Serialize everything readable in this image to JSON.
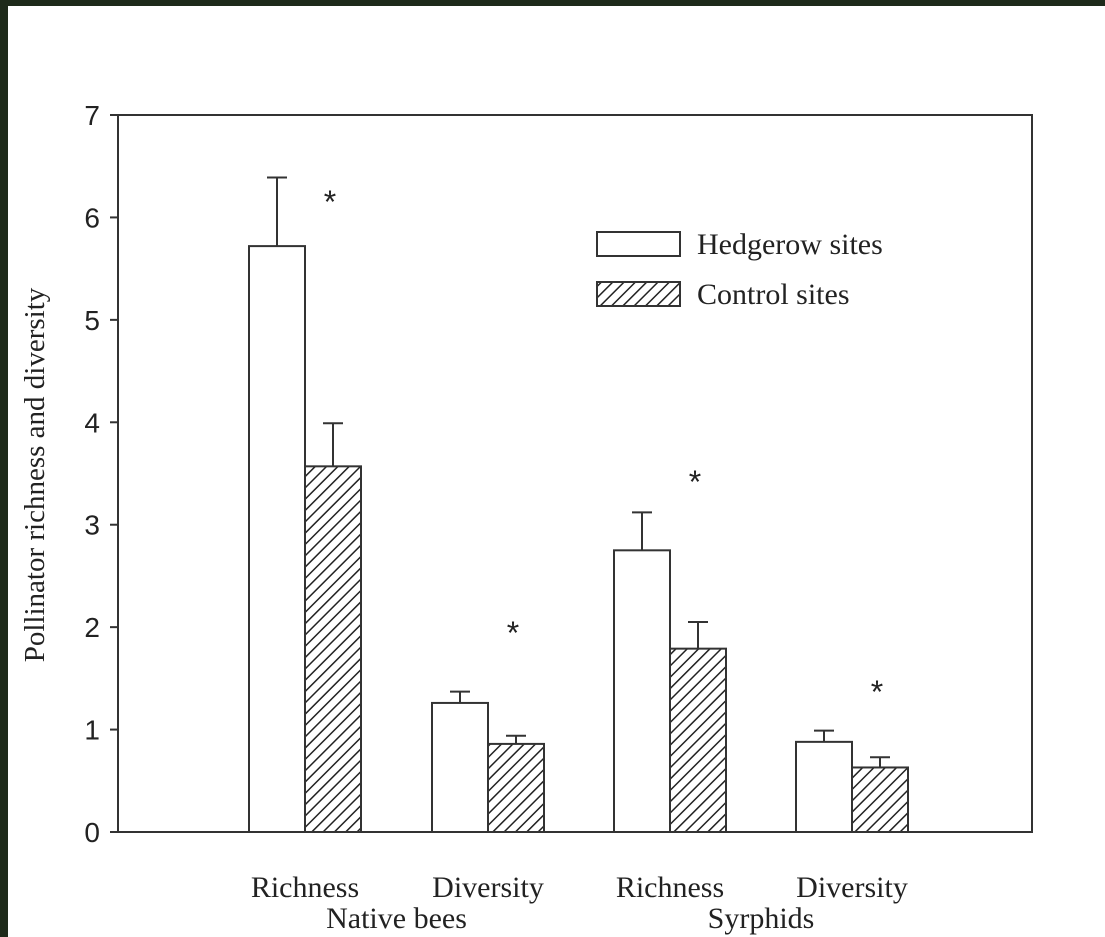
{
  "chart_data": {
    "type": "bar",
    "ylabel": "Pollinator richness and diversity",
    "categories": [
      "Richness",
      "Diversity",
      "Richness",
      "Diversity"
    ],
    "group_labels": [
      "Native bees",
      "Syrphids"
    ],
    "series": [
      {
        "name": "Hedgerow sites",
        "color": "#ffffff",
        "hatch": false,
        "values": [
          5.72,
          1.26,
          2.75,
          0.88
        ],
        "errors": [
          0.67,
          0.11,
          0.37,
          0.11
        ]
      },
      {
        "name": "Control sites",
        "color": "#ffffff",
        "hatch": true,
        "values": [
          3.57,
          0.86,
          1.79,
          0.63
        ],
        "errors": [
          0.42,
          0.08,
          0.26,
          0.1
        ]
      }
    ],
    "annotations": [
      "*",
      "*",
      "*",
      "*"
    ],
    "ylim": [
      0,
      7
    ],
    "yticks": [
      0,
      1,
      2,
      3,
      4,
      5,
      6,
      7
    ],
    "legend": "upper right"
  }
}
